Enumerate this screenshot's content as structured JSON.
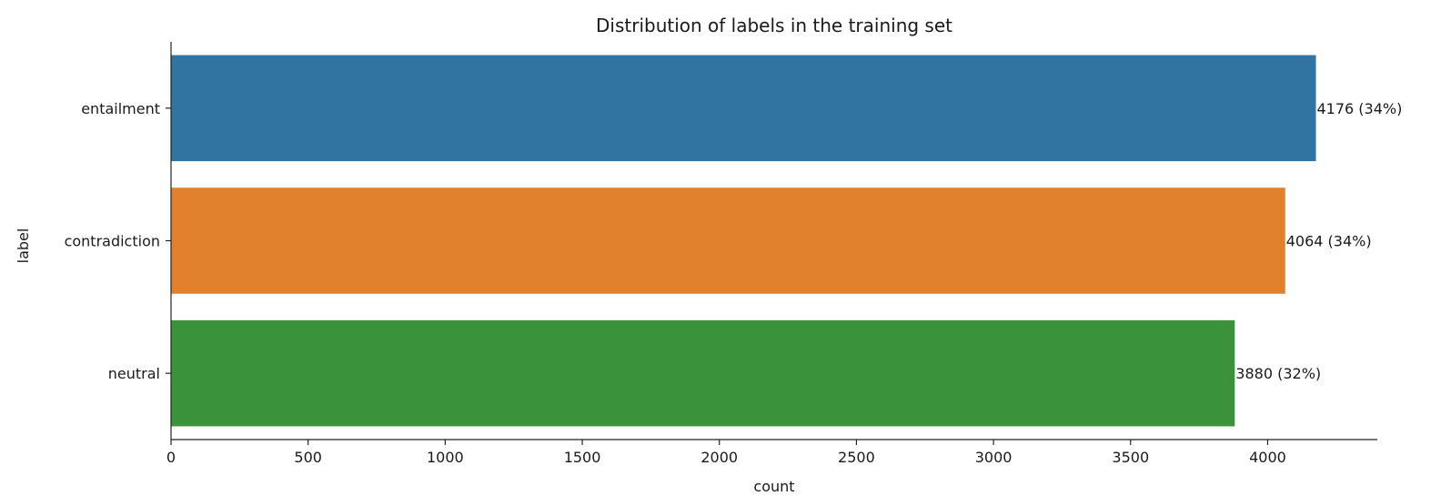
{
  "chart_data": {
    "type": "bar",
    "orientation": "horizontal",
    "title": "Distribution of labels in the training set",
    "xlabel": "count",
    "ylabel": "label",
    "categories": [
      "entailment",
      "contradiction",
      "neutral"
    ],
    "values": [
      4176,
      4064,
      3880
    ],
    "data_labels": [
      "4176 (34%)",
      "4064 (34%)",
      "3880 (32%)"
    ],
    "colors": [
      "#3274a1",
      "#e1812c",
      "#3a923a"
    ],
    "xlim": [
      0,
      4400
    ],
    "xticks": [
      0,
      500,
      1000,
      1500,
      2000,
      2500,
      3000,
      3500,
      4000
    ],
    "xtick_labels": [
      "0",
      "500",
      "1000",
      "1500",
      "2000",
      "2500",
      "3000",
      "3500",
      "4000"
    ],
    "grid": false,
    "spines": [
      "left",
      "bottom"
    ]
  }
}
